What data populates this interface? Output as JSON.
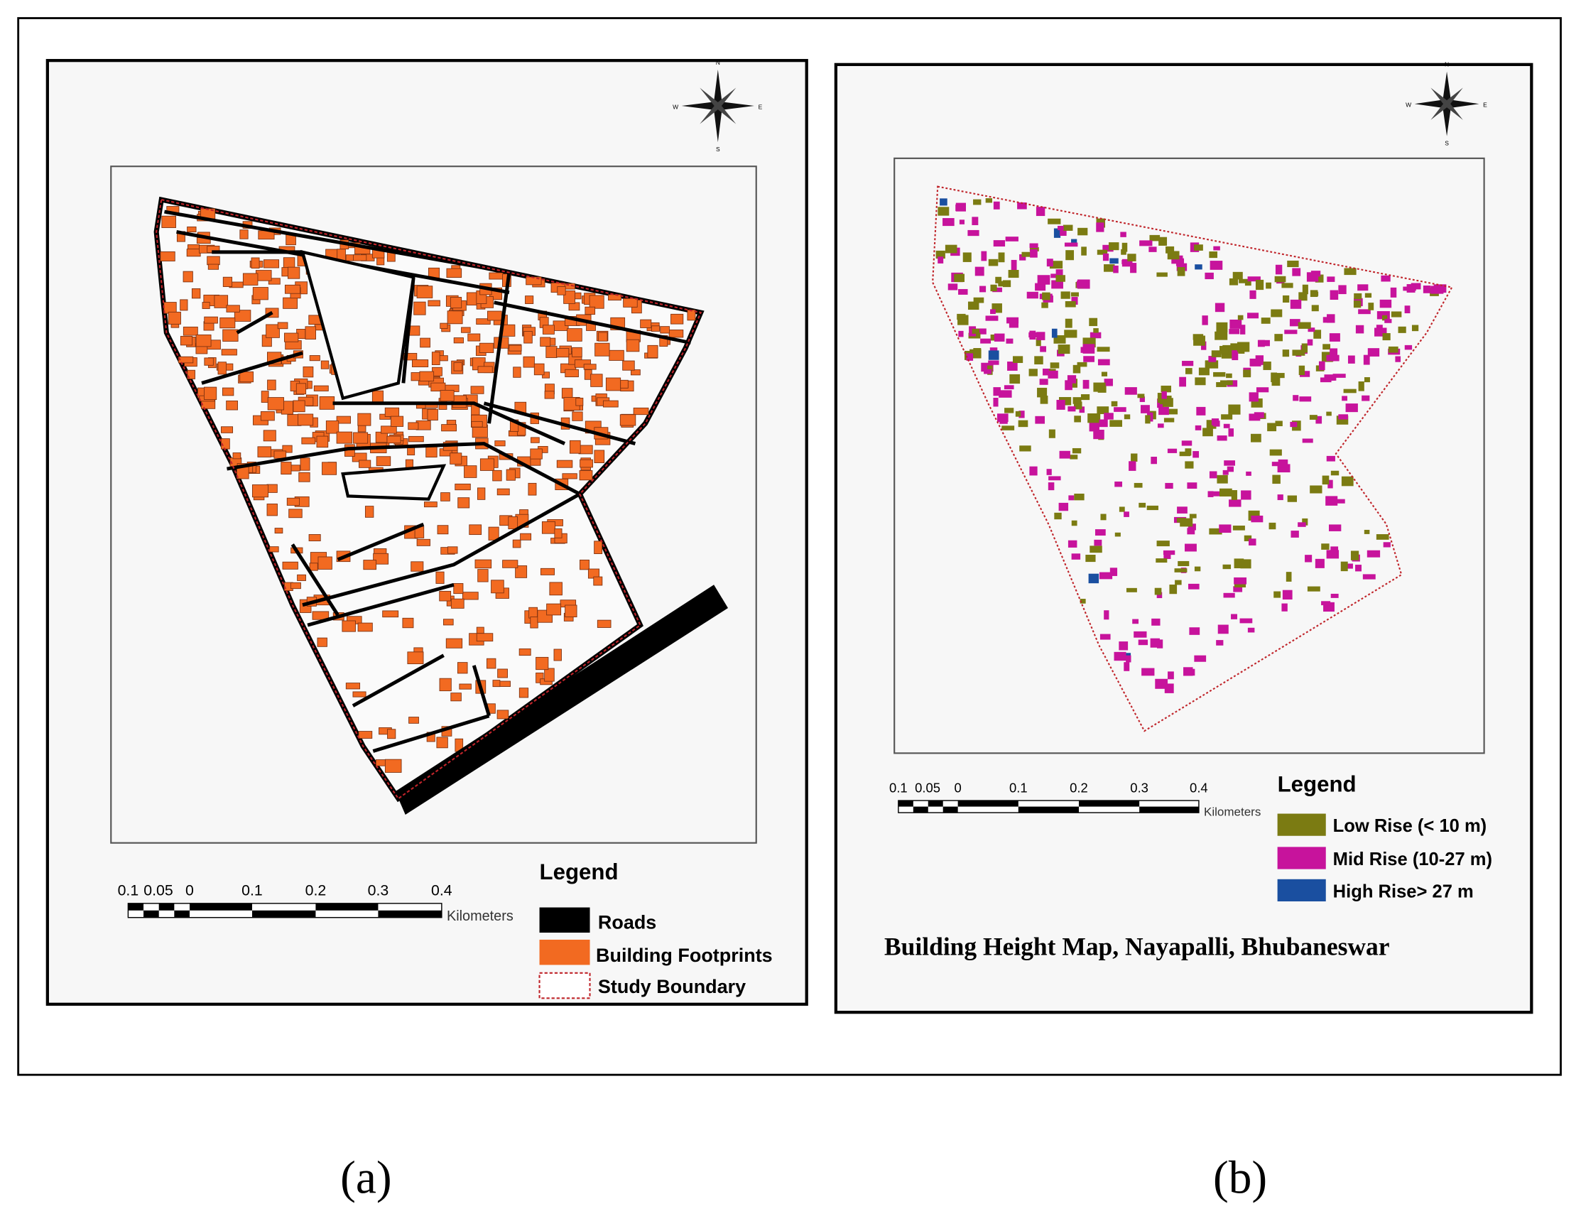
{
  "panels": [
    {
      "label": "(a)",
      "compass": [
        "N",
        "S",
        "E",
        "W"
      ],
      "scale_bar": {
        "ticks": [
          "0.1",
          "0.05",
          "0",
          "0.1",
          "0.2",
          "0.3",
          "0.4"
        ],
        "unit": "Kilometers"
      },
      "legend": {
        "title": "Legend",
        "items": [
          "Roads",
          "Building Footprints",
          "Study Boundary"
        ]
      }
    },
    {
      "label": "(b)",
      "compass": [
        "N",
        "S",
        "E",
        "W"
      ],
      "title": "Building Height Map, Nayapalli, Bhubaneswar",
      "scale_bar": {
        "ticks": [
          "0.1",
          "0.05",
          "0",
          "0.1",
          "0.2",
          "0.3",
          "0.4"
        ],
        "unit": "Kilometers"
      },
      "legend": {
        "title": "Legend",
        "items": [
          "Low Rise (< 10 m)",
          "Mid Rise (10-27 m)",
          "High Rise> 27 m"
        ]
      }
    }
  ]
}
